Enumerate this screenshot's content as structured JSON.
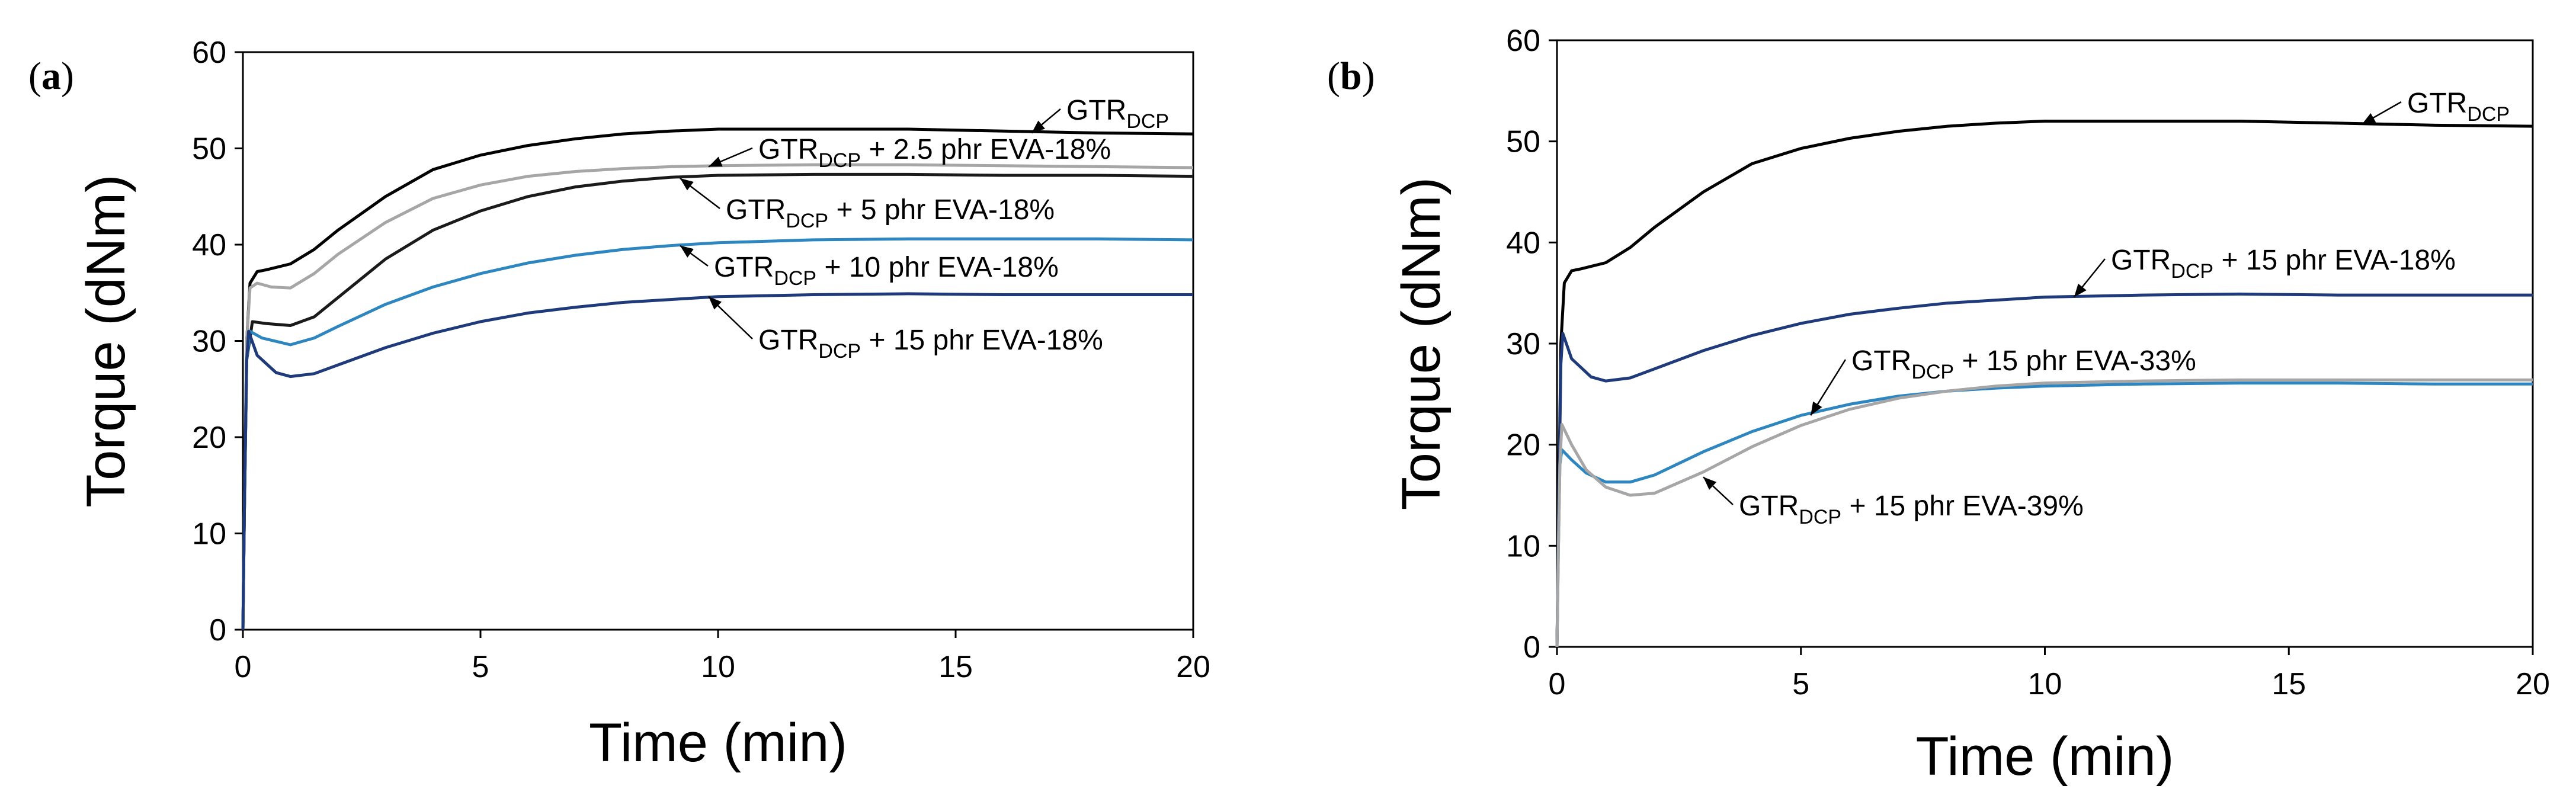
{
  "figure": {
    "panel_labels": [
      "a",
      "b"
    ]
  },
  "chart_data": [
    {
      "panel": "a",
      "type": "line",
      "title": "",
      "xlabel": "Time (min)",
      "ylabel": "Torque (dNm)",
      "xlim": [
        0,
        20
      ],
      "ylim": [
        0,
        60
      ],
      "xticks": [
        0,
        5,
        10,
        15,
        20
      ],
      "yticks": [
        0,
        10,
        20,
        30,
        40,
        50,
        60
      ],
      "grid": false,
      "series": [
        {
          "name": "GTR_DCP",
          "color": "#000000",
          "label_main": "GTR",
          "label_sub": "DCP",
          "label_rest": "",
          "points": [
            [
              0,
              0
            ],
            [
              0.03,
              12
            ],
            [
              0.08,
              30
            ],
            [
              0.15,
              36
            ],
            [
              0.3,
              37.2
            ],
            [
              0.5,
              37.4
            ],
            [
              1,
              38
            ],
            [
              1.5,
              39.5
            ],
            [
              2,
              41.5
            ],
            [
              3,
              45
            ],
            [
              4,
              47.8
            ],
            [
              5,
              49.3
            ],
            [
              6,
              50.3
            ],
            [
              7,
              51
            ],
            [
              8,
              51.5
            ],
            [
              9,
              51.8
            ],
            [
              10,
              52
            ],
            [
              12,
              52
            ],
            [
              14,
              52
            ],
            [
              16,
              51.8
            ],
            [
              18,
              51.6
            ],
            [
              20,
              51.5
            ]
          ]
        },
        {
          "name": "GTR_DCP + 2.5 phr EVA-18%",
          "color": "#a6a6a6",
          "label_main": "GTR",
          "label_sub": "DCP",
          "label_rest": " + 2.5 phr EVA-18%",
          "points": [
            [
              0,
              0
            ],
            [
              0.03,
              12
            ],
            [
              0.08,
              30
            ],
            [
              0.15,
              35.5
            ],
            [
              0.3,
              36
            ],
            [
              0.6,
              35.6
            ],
            [
              1,
              35.5
            ],
            [
              1.5,
              37
            ],
            [
              2,
              39
            ],
            [
              3,
              42.3
            ],
            [
              4,
              44.8
            ],
            [
              5,
              46.2
            ],
            [
              6,
              47.1
            ],
            [
              7,
              47.6
            ],
            [
              8,
              47.9
            ],
            [
              9,
              48.1
            ],
            [
              10,
              48.2
            ],
            [
              12,
              48.3
            ],
            [
              14,
              48.3
            ],
            [
              16,
              48.2
            ],
            [
              18,
              48.1
            ],
            [
              20,
              48
            ]
          ]
        },
        {
          "name": "GTR_DCP + 5 phr EVA-18%",
          "color": "#1a1a1a",
          "label_main": "GTR",
          "label_sub": "DCP",
          "label_rest": " + 5 phr EVA-18%",
          "points": [
            [
              0,
              0
            ],
            [
              0.03,
              12
            ],
            [
              0.08,
              28
            ],
            [
              0.2,
              32
            ],
            [
              0.5,
              31.8
            ],
            [
              1,
              31.6
            ],
            [
              1.5,
              32.5
            ],
            [
              2,
              34.5
            ],
            [
              3,
              38.5
            ],
            [
              4,
              41.5
            ],
            [
              5,
              43.5
            ],
            [
              6,
              45
            ],
            [
              7,
              46
            ],
            [
              8,
              46.6
            ],
            [
              9,
              47
            ],
            [
              10,
              47.2
            ],
            [
              12,
              47.3
            ],
            [
              14,
              47.3
            ],
            [
              16,
              47.2
            ],
            [
              18,
              47.2
            ],
            [
              20,
              47.1
            ]
          ]
        },
        {
          "name": "GTR_DCP + 10 phr EVA-18%",
          "color": "#2e86c1",
          "label_main": "GTR",
          "label_sub": "DCP",
          "label_rest": " + 10 phr EVA-18%",
          "points": [
            [
              0,
              0
            ],
            [
              0.03,
              12
            ],
            [
              0.08,
              28
            ],
            [
              0.15,
              31
            ],
            [
              0.4,
              30.3
            ],
            [
              1,
              29.6
            ],
            [
              1.5,
              30.3
            ],
            [
              2,
              31.5
            ],
            [
              3,
              33.8
            ],
            [
              4,
              35.6
            ],
            [
              5,
              37
            ],
            [
              6,
              38.1
            ],
            [
              7,
              38.9
            ],
            [
              8,
              39.5
            ],
            [
              9,
              39.9
            ],
            [
              10,
              40.2
            ],
            [
              12,
              40.5
            ],
            [
              14,
              40.6
            ],
            [
              16,
              40.6
            ],
            [
              18,
              40.6
            ],
            [
              20,
              40.5
            ]
          ]
        },
        {
          "name": "GTR_DCP + 15 phr EVA-18%",
          "color": "#1f3a7a",
          "label_main": "GTR",
          "label_sub": "DCP",
          "label_rest": " + 15 phr EVA-18%",
          "points": [
            [
              0,
              0
            ],
            [
              0.03,
              12
            ],
            [
              0.08,
              28
            ],
            [
              0.12,
              31
            ],
            [
              0.3,
              28.5
            ],
            [
              0.7,
              26.7
            ],
            [
              1,
              26.3
            ],
            [
              1.5,
              26.6
            ],
            [
              2,
              27.5
            ],
            [
              3,
              29.3
            ],
            [
              4,
              30.8
            ],
            [
              5,
              32
            ],
            [
              6,
              32.9
            ],
            [
              7,
              33.5
            ],
            [
              8,
              34
            ],
            [
              9,
              34.3
            ],
            [
              10,
              34.6
            ],
            [
              12,
              34.8
            ],
            [
              14,
              34.9
            ],
            [
              16,
              34.8
            ],
            [
              18,
              34.8
            ],
            [
              20,
              34.8
            ]
          ]
        }
      ],
      "annotations": [
        {
          "series": 0,
          "label_main": "GTR",
          "label_sub": "DCP",
          "label_rest": ""
        },
        {
          "series": 1,
          "label_main": "GTR",
          "label_sub": "DCP",
          "label_rest": " + 2.5 phr EVA-18%"
        },
        {
          "series": 2,
          "label_main": "GTR",
          "label_sub": "DCP",
          "label_rest": " + 5 phr EVA-18%"
        },
        {
          "series": 3,
          "label_main": "GTR",
          "label_sub": "DCP",
          "label_rest": " + 10 phr EVA-18%"
        },
        {
          "series": 4,
          "label_main": "GTR",
          "label_sub": "DCP",
          "label_rest": " + 15 phr EVA-18%"
        }
      ]
    },
    {
      "panel": "b",
      "type": "line",
      "title": "",
      "xlabel": "Time (min)",
      "ylabel": "Torque (dNm)",
      "xlim": [
        0,
        20
      ],
      "ylim": [
        0,
        60
      ],
      "xticks": [
        0,
        5,
        10,
        15,
        20
      ],
      "yticks": [
        0,
        10,
        20,
        30,
        40,
        50,
        60
      ],
      "grid": false,
      "series": [
        {
          "name": "GTR_DCP",
          "color": "#000000",
          "label_main": "GTR",
          "label_sub": "DCP",
          "label_rest": "",
          "points": [
            [
              0,
              0
            ],
            [
              0.03,
              12
            ],
            [
              0.08,
              30
            ],
            [
              0.15,
              36
            ],
            [
              0.3,
              37.2
            ],
            [
              0.5,
              37.4
            ],
            [
              1,
              38
            ],
            [
              1.5,
              39.5
            ],
            [
              2,
              41.5
            ],
            [
              3,
              45
            ],
            [
              4,
              47.8
            ],
            [
              5,
              49.3
            ],
            [
              6,
              50.3
            ],
            [
              7,
              51
            ],
            [
              8,
              51.5
            ],
            [
              9,
              51.8
            ],
            [
              10,
              52
            ],
            [
              12,
              52
            ],
            [
              14,
              52
            ],
            [
              16,
              51.8
            ],
            [
              18,
              51.6
            ],
            [
              20,
              51.5
            ]
          ]
        },
        {
          "name": "GTR_DCP + 15 phr EVA-18%",
          "color": "#1f3a7a",
          "label_main": "GTR",
          "label_sub": "DCP",
          "label_rest": " + 15 phr EVA-18%",
          "points": [
            [
              0,
              0
            ],
            [
              0.03,
              12
            ],
            [
              0.08,
              28
            ],
            [
              0.12,
              31
            ],
            [
              0.3,
              28.5
            ],
            [
              0.7,
              26.7
            ],
            [
              1,
              26.3
            ],
            [
              1.5,
              26.6
            ],
            [
              2,
              27.5
            ],
            [
              3,
              29.3
            ],
            [
              4,
              30.8
            ],
            [
              5,
              32
            ],
            [
              6,
              32.9
            ],
            [
              7,
              33.5
            ],
            [
              8,
              34
            ],
            [
              9,
              34.3
            ],
            [
              10,
              34.6
            ],
            [
              12,
              34.8
            ],
            [
              14,
              34.9
            ],
            [
              16,
              34.8
            ],
            [
              18,
              34.8
            ],
            [
              20,
              34.8
            ]
          ]
        },
        {
          "name": "GTR_DCP + 15 phr EVA-33%",
          "color": "#2e86c1",
          "label_main": "GTR",
          "label_sub": "DCP",
          "label_rest": " + 15 phr EVA-33%",
          "points": [
            [
              0,
              0
            ],
            [
              0.03,
              10
            ],
            [
              0.06,
              18
            ],
            [
              0.1,
              19.5
            ],
            [
              0.3,
              18.5
            ],
            [
              0.6,
              17.2
            ],
            [
              1,
              16.3
            ],
            [
              1.5,
              16.3
            ],
            [
              2,
              17
            ],
            [
              3,
              19.3
            ],
            [
              4,
              21.3
            ],
            [
              5,
              22.9
            ],
            [
              6,
              24
            ],
            [
              7,
              24.8
            ],
            [
              8,
              25.3
            ],
            [
              9,
              25.6
            ],
            [
              10,
              25.8
            ],
            [
              12,
              26
            ],
            [
              14,
              26.1
            ],
            [
              16,
              26.1
            ],
            [
              18,
              26
            ],
            [
              20,
              26
            ]
          ]
        },
        {
          "name": "GTR_DCP + 15 phr EVA-39%",
          "color": "#a6a6a6",
          "label_main": "GTR",
          "label_sub": "DCP",
          "label_rest": " + 15 phr EVA-39%",
          "points": [
            [
              0,
              0
            ],
            [
              0.03,
              10
            ],
            [
              0.06,
              18
            ],
            [
              0.1,
              22
            ],
            [
              0.3,
              20
            ],
            [
              0.6,
              17.5
            ],
            [
              1,
              15.8
            ],
            [
              1.5,
              15
            ],
            [
              2,
              15.2
            ],
            [
              3,
              17.3
            ],
            [
              4,
              19.8
            ],
            [
              5,
              21.9
            ],
            [
              6,
              23.5
            ],
            [
              7,
              24.6
            ],
            [
              8,
              25.3
            ],
            [
              9,
              25.8
            ],
            [
              10,
              26.1
            ],
            [
              12,
              26.3
            ],
            [
              14,
              26.4
            ],
            [
              16,
              26.4
            ],
            [
              18,
              26.4
            ],
            [
              20,
              26.4
            ]
          ]
        }
      ],
      "annotations": [
        {
          "series": 0,
          "label_main": "GTR",
          "label_sub": "DCP",
          "label_rest": ""
        },
        {
          "series": 1,
          "label_main": "GTR",
          "label_sub": "DCP",
          "label_rest": " + 15 phr EVA-18%"
        },
        {
          "series": 2,
          "label_main": "GTR",
          "label_sub": "DCP",
          "label_rest": " + 15 phr EVA-33%"
        },
        {
          "series": 3,
          "label_main": "GTR",
          "label_sub": "DCP",
          "label_rest": " + 15 phr EVA-39%"
        }
      ]
    }
  ]
}
